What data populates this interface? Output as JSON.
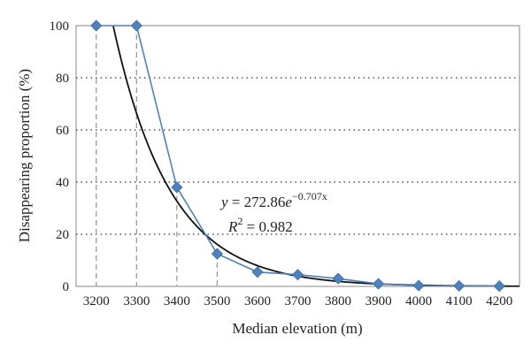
{
  "chart_data": {
    "type": "line",
    "xlabel": "Median elevation (m)",
    "ylabel": "Disappearing proportion (%)",
    "xlim": [
      3150,
      4250
    ],
    "ylim": [
      0,
      100
    ],
    "x_ticks": [
      "3200",
      "3300",
      "3400",
      "3500",
      "3600",
      "3700",
      "3800",
      "3900",
      "4000",
      "4100",
      "4200"
    ],
    "y_ticks": [
      "0",
      "20",
      "40",
      "60",
      "80",
      "100"
    ],
    "grid": {
      "horizontal": "dotted",
      "vertical": "none"
    },
    "series": [
      {
        "x": [
          3200,
          3300,
          3400,
          3500,
          3600,
          3700,
          3800,
          3900,
          4000,
          4100,
          4200
        ],
        "y": [
          100,
          100,
          38,
          12.5,
          5.5,
          4.5,
          3,
          1,
          0.3,
          0.2,
          0.1
        ],
        "color": "#4f81bd",
        "marker": "diamond",
        "drop_lines_at": [
          3200,
          3300,
          3400,
          3500
        ]
      }
    ],
    "trendline": {
      "type": "exponential",
      "a": 272.86,
      "b": -0.707,
      "color": "#111111",
      "x_offset_start": 3100,
      "x_step": 100
    },
    "annotation": {
      "y_prefix": "y",
      "equals": " = ",
      "coefficient": "272.86",
      "base": "e",
      "exponent": "−0.707x",
      "r_label": "R",
      "r_power": "2",
      "r_value": " = 0.982"
    }
  }
}
